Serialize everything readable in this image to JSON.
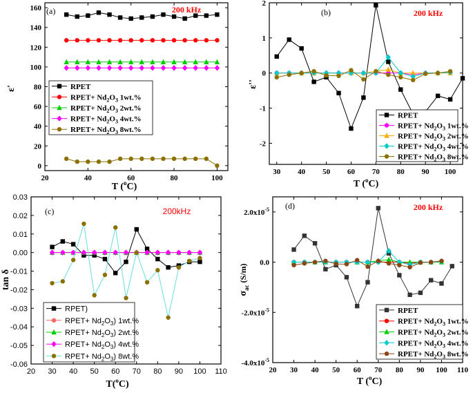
{
  "chart_data": [
    {
      "panel": "(a)",
      "type": "line",
      "frequency_label": "200 kHz",
      "xlabel_parts": [
        "T (",
        "o",
        "C)"
      ],
      "ylabel": "ε'",
      "xlim": [
        20,
        105
      ],
      "ylim": [
        -5,
        165
      ],
      "xticks": [
        20,
        40,
        60,
        80,
        100
      ],
      "yticks": [
        0,
        20,
        40,
        60,
        80,
        100,
        120,
        140,
        160
      ],
      "legend_position": "left",
      "x": [
        30,
        35,
        40,
        45,
        50,
        55,
        60,
        65,
        70,
        75,
        80,
        85,
        90,
        95,
        100
      ],
      "series": [
        {
          "name": "RPET",
          "color": "#000000",
          "marker": "square",
          "values": [
            153,
            151,
            152,
            155,
            153,
            150,
            149,
            150,
            151,
            153,
            151,
            149,
            152,
            152,
            153
          ]
        },
        {
          "name": "RPET+ Nd2O3 1wt.%",
          "color": "#ff0000",
          "marker": "circle",
          "values": [
            127,
            127,
            127,
            127,
            127,
            127,
            127,
            127,
            127,
            127,
            127,
            127,
            127,
            127,
            127
          ]
        },
        {
          "name": "RPET+ Nd2O3 2wt.%",
          "color": "#00cc00",
          "marker": "triangle",
          "values": [
            105,
            105,
            105,
            105,
            105,
            105,
            105,
            105,
            105,
            105,
            105,
            105,
            105,
            105,
            105
          ]
        },
        {
          "name": "RPET+ Nd2O3 4wt.%",
          "color": "#ff00ff",
          "marker": "diamond",
          "values": [
            99,
            99,
            99,
            99,
            99,
            99,
            99,
            99,
            99,
            99,
            99,
            99,
            99,
            99,
            99
          ]
        },
        {
          "name": "RPET+ Nd2O3 8wt.%",
          "color": "#8b7000",
          "marker": "circle",
          "values": [
            7,
            4,
            4,
            4,
            4,
            7,
            7,
            7,
            7,
            7,
            7,
            7,
            7,
            7,
            0
          ]
        }
      ]
    },
    {
      "panel": "(b)",
      "type": "line",
      "frequency_label": "200 kHz",
      "xlabel_parts": [
        "T (",
        "o",
        "C)"
      ],
      "ylabel": "ε''",
      "xlim": [
        27,
        105
      ],
      "ylim": [
        -2.6,
        2.0
      ],
      "xticks": [
        30,
        40,
        50,
        60,
        70,
        80,
        90,
        100
      ],
      "yticks": [
        -2,
        -1,
        0,
        1,
        2
      ],
      "legend_position": "bottom-right",
      "x": [
        30,
        35,
        40,
        45,
        50,
        55,
        60,
        65,
        70,
        75,
        80,
        85,
        90,
        95,
        100,
        105
      ],
      "series": [
        {
          "name": "RPET",
          "color": "#000000",
          "marker": "square",
          "values": [
            0.47,
            0.95,
            0.7,
            -0.25,
            -0.12,
            -0.57,
            -1.58,
            -0.7,
            1.93,
            0.32,
            -0.47,
            -1.17,
            -1.1,
            -0.65,
            -0.75,
            -0.15
          ]
        },
        {
          "name": "RPET+ Nd2O3 1wt.%",
          "color": "#ff00ff",
          "marker": "circle",
          "values": [
            0.0,
            0.0,
            0.0,
            0.0,
            0.0,
            0.0,
            0.0,
            0.0,
            0.0,
            0.0,
            0.0,
            -0.05,
            0.0,
            0.0,
            0.02,
            null
          ]
        },
        {
          "name": "RPET+ Nd2O3 2wt.%",
          "color": "#ffaa00",
          "marker": "triangle",
          "values": [
            0.0,
            0.0,
            0.0,
            0.0,
            0.0,
            0.0,
            0.0,
            0.0,
            0.05,
            0.1,
            0.0,
            0.0,
            0.0,
            0.0,
            0.0,
            null
          ]
        },
        {
          "name": "RPET+ Nd2O3 4wt.%",
          "color": "#00cccc",
          "marker": "diamond",
          "values": [
            0.0,
            0.0,
            0.0,
            0.0,
            0.0,
            0.0,
            0.0,
            0.0,
            0.0,
            0.45,
            0.0,
            -0.1,
            0.0,
            0.0,
            0.02,
            null
          ]
        },
        {
          "name": "RPET+ Nd2O3 8wt.%",
          "color": "#8b7000",
          "marker": "circle",
          "values": [
            -0.12,
            -0.05,
            0.0,
            0.05,
            -0.07,
            -0.08,
            0.08,
            -0.18,
            0.05,
            -0.05,
            -0.12,
            -0.2,
            -0.02,
            0.0,
            0.05,
            null
          ]
        }
      ]
    },
    {
      "panel": "(c)",
      "type": "line",
      "frequency_label": "200kHz",
      "xlabel_parts": [
        "T(",
        "o",
        "C)"
      ],
      "ylabel": "tan δ",
      "xlim": [
        20,
        110
      ],
      "ylim": [
        -0.06,
        0.03
      ],
      "xticks": [
        20,
        30,
        40,
        50,
        60,
        70,
        80,
        90,
        100,
        110
      ],
      "yticks": [
        0.03,
        0.02,
        0.01,
        0.0,
        -0.01,
        -0.02,
        -0.03,
        -0.04,
        -0.05,
        -0.06
      ],
      "ytick_labels": [
        "0.03",
        "0.02",
        "0.01",
        "0.00",
        "-0.01",
        "-0.02",
        "-0.03",
        "-0.04",
        "-0.05",
        "-0.06"
      ],
      "legend_position": "bottom-left",
      "x": [
        30,
        35,
        40,
        45,
        50,
        55,
        60,
        65,
        70,
        75,
        80,
        85,
        90,
        95,
        100
      ],
      "series": [
        {
          "name": "RPET)",
          "color": "#000000",
          "marker": "square",
          "values": [
            0.003,
            0.006,
            0.0045,
            -0.0015,
            -0.0015,
            -0.0035,
            -0.011,
            -0.005,
            0.0125,
            0.002,
            -0.0035,
            -0.008,
            -0.007,
            -0.005,
            -0.005
          ]
        },
        {
          "name": "RPET+ Nd2O3) 1wt.%",
          "color": "#ff6666",
          "marker": "circle",
          "values": [
            0.0,
            0.0,
            0.0,
            0.0,
            0.0,
            0.0,
            0.0,
            0.0,
            0.0,
            0.0,
            0.0,
            0.0,
            0.0,
            0.0,
            0.0
          ]
        },
        {
          "name": "RPET+ Nd2O3) 2wt.%",
          "color": "#00cc00",
          "marker": "triangle",
          "values": [
            0.0,
            0.0,
            0.0,
            0.0,
            0.0,
            0.0,
            0.0,
            0.0,
            0.0,
            0.0,
            0.0,
            0.0,
            0.0,
            0.0,
            0.0
          ]
        },
        {
          "name": "RPET+ Nd2O3) 4wt.%",
          "color": "#ff00ff",
          "marker": "diamond",
          "values": [
            0.0,
            0.0,
            0.0,
            0.0,
            0.0,
            0.0,
            0.0,
            0.0,
            0.0,
            0.0,
            0.0,
            0.0,
            0.0,
            0.0,
            0.0
          ]
        },
        {
          "name": "RPET+ Nd2O3) 8wt.%",
          "color": "#8b7000",
          "marker": "circle",
          "line_color": "#66dddd",
          "values": [
            -0.0165,
            -0.0155,
            -0.004,
            0.0155,
            -0.023,
            -0.012,
            0.0135,
            -0.0245,
            0.0,
            -0.016,
            -0.0095,
            -0.035,
            -0.008,
            -0.0045,
            -0.003
          ]
        }
      ]
    },
    {
      "panel": "(d)",
      "type": "line",
      "frequency_label": "200 kHz",
      "xlabel_parts": [
        "T (",
        "o",
        "C)"
      ],
      "ylabel_main": "σ",
      "ylabel_sub": "ac",
      "ylabel_unit": " (S/m)",
      "xlim": [
        20,
        110
      ],
      "ylim": [
        -4e-05,
        2.6e-05
      ],
      "xticks": [
        20,
        30,
        40,
        50,
        60,
        70,
        80,
        90,
        100,
        110
      ],
      "yticks": [
        2e-05,
        0.0,
        -2e-05,
        -4e-05
      ],
      "ytick_labels": [
        [
          "2.0x10",
          "-5"
        ],
        [
          "0.0",
          ""
        ],
        [
          "-2.0x10",
          "-5"
        ],
        [
          "-4.0x10",
          "-5"
        ]
      ],
      "legend_position": "bottom-right",
      "x": [
        30,
        35,
        40,
        45,
        50,
        55,
        60,
        65,
        70,
        75,
        80,
        85,
        90,
        95,
        100,
        105
      ],
      "series": [
        {
          "name": "RPET",
          "color": "#333333",
          "marker": "square",
          "values": [
            5e-06,
            1.05e-05,
            7.5e-06,
            -2.8e-06,
            -1.2e-06,
            -6e-06,
            -1.75e-05,
            -8e-06,
            2.15e-05,
            3.5e-06,
            -5.2e-06,
            -1.3e-05,
            -1.22e-05,
            -7.2e-06,
            -8.5e-06,
            -1.6e-06
          ]
        },
        {
          "name": "RPET+ Nd2O3 1wt.%",
          "color": "#ff0000",
          "marker": "circle",
          "values": [
            0.0,
            0.0,
            0.0,
            0.0,
            0.0,
            0.0,
            0.0,
            0.0,
            0.0,
            0.0,
            0.0,
            -5e-07,
            0.0,
            0.0,
            3e-07,
            null
          ]
        },
        {
          "name": "RPET+ Nd2O3 2wt.%",
          "color": "#00cc00",
          "marker": "triangle",
          "values": [
            0.0,
            0.0,
            0.0,
            0.0,
            0.0,
            0.0,
            0.0,
            0.0,
            5e-07,
            1e-06,
            0.0,
            0.0,
            0.0,
            0.0,
            0.0,
            null
          ]
        },
        {
          "name": "RPET+ Nd2O3 4wt.%",
          "color": "#00cccc",
          "marker": "diamond",
          "values": [
            0.0,
            0.0,
            0.0,
            0.0,
            0.0,
            0.0,
            0.0,
            0.0,
            0.0,
            4.5e-06,
            0.0,
            -1e-06,
            0.0,
            0.0,
            3e-07,
            null
          ]
        },
        {
          "name": "RPET+ Nd2O3 8wt.%",
          "color": "#8b4513",
          "marker": "circle",
          "values": [
            -1.2e-06,
            -5e-07,
            0.0,
            5e-07,
            -7e-07,
            -8e-07,
            8e-07,
            -1.8e-06,
            5e-07,
            -5e-07,
            -1.2e-06,
            -2e-06,
            -2e-07,
            0.0,
            5e-07,
            null
          ]
        }
      ]
    }
  ]
}
